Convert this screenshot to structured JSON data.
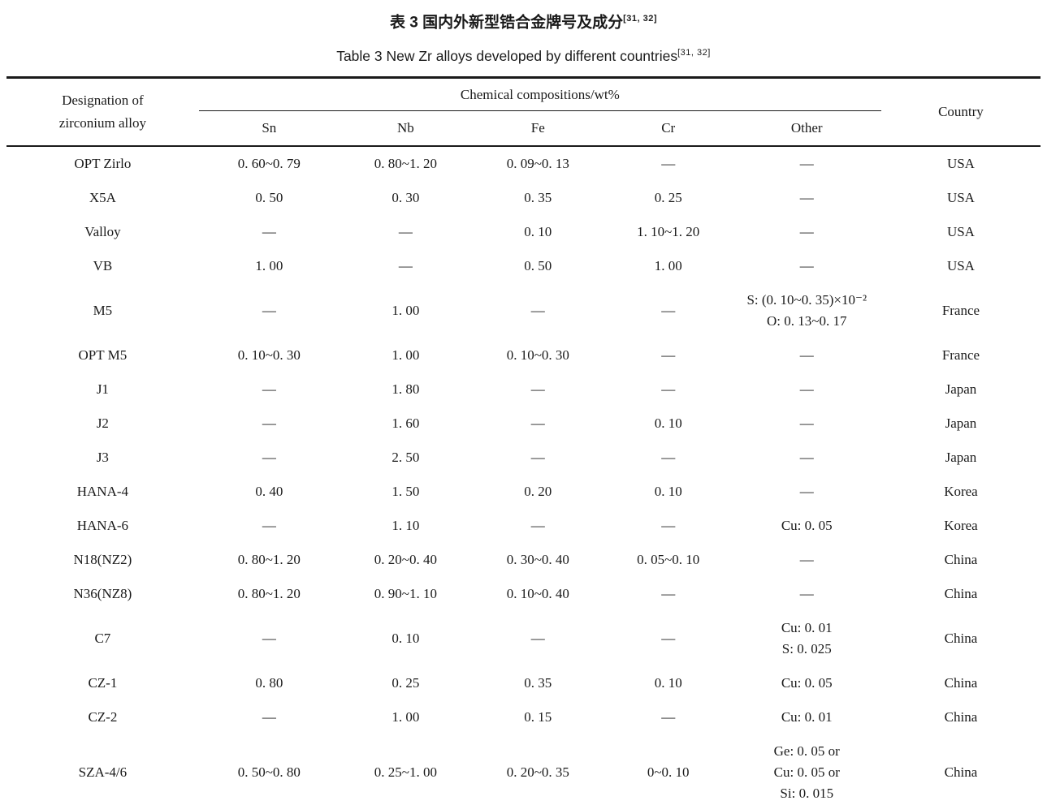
{
  "titles": {
    "zh": "表 3  国内外新型锆合金牌号及成分",
    "zh_ref": "[31, 32]",
    "en": "Table 3  New Zr alloys developed by different countries",
    "en_ref": "[31, 32]"
  },
  "table": {
    "header": {
      "designation_line1": "Designation of",
      "designation_line2": "zirconium alloy",
      "compositions_group": "Chemical compositions/wt%",
      "sub_columns": [
        "Sn",
        "Nb",
        "Fe",
        "Cr",
        "Other"
      ],
      "country": "Country"
    },
    "column_keys": [
      "designation",
      "sn",
      "nb",
      "fe",
      "cr",
      "other",
      "country"
    ],
    "rows": [
      {
        "designation": "OPT Zirlo",
        "sn": "0. 60~0. 79",
        "nb": "0. 80~1. 20",
        "fe": "0. 09~0. 13",
        "cr": "—",
        "other": "—",
        "country": "USA"
      },
      {
        "designation": "X5A",
        "sn": "0. 50",
        "nb": "0. 30",
        "fe": "0. 35",
        "cr": "0. 25",
        "other": "—",
        "country": "USA"
      },
      {
        "designation": "Valloy",
        "sn": "—",
        "nb": "—",
        "fe": "0. 10",
        "cr": "1. 10~1. 20",
        "other": "—",
        "country": "USA"
      },
      {
        "designation": "VB",
        "sn": "1. 00",
        "nb": "—",
        "fe": "0. 50",
        "cr": "1. 00",
        "other": "—",
        "country": "USA"
      },
      {
        "designation": "M5",
        "sn": "—",
        "nb": "1. 00",
        "fe": "—",
        "cr": "—",
        "other": [
          "S: (0. 10~0. 35)×10⁻²",
          "O: 0. 13~0. 17"
        ],
        "country": "France"
      },
      {
        "designation": "OPT M5",
        "sn": "0. 10~0. 30",
        "nb": "1. 00",
        "fe": "0. 10~0. 30",
        "cr": "—",
        "other": "—",
        "country": "France"
      },
      {
        "designation": "J1",
        "sn": "—",
        "nb": "1. 80",
        "fe": "—",
        "cr": "—",
        "other": "—",
        "country": "Japan"
      },
      {
        "designation": "J2",
        "sn": "—",
        "nb": "1. 60",
        "fe": "—",
        "cr": "0. 10",
        "other": "—",
        "country": "Japan"
      },
      {
        "designation": "J3",
        "sn": "—",
        "nb": "2. 50",
        "fe": "—",
        "cr": "—",
        "other": "—",
        "country": "Japan"
      },
      {
        "designation": "HANA-4",
        "sn": "0. 40",
        "nb": "1. 50",
        "fe": "0. 20",
        "cr": "0. 10",
        "other": "—",
        "country": "Korea"
      },
      {
        "designation": "HANA-6",
        "sn": "—",
        "nb": "1. 10",
        "fe": "—",
        "cr": "—",
        "other": "Cu: 0. 05",
        "country": "Korea"
      },
      {
        "designation": "N18(NZ2)",
        "sn": "0. 80~1. 20",
        "nb": "0. 20~0. 40",
        "fe": "0. 30~0. 40",
        "cr": "0. 05~0. 10",
        "other": "—",
        "country": "China"
      },
      {
        "designation": "N36(NZ8)",
        "sn": "0. 80~1. 20",
        "nb": "0. 90~1. 10",
        "fe": "0. 10~0. 40",
        "cr": "—",
        "other": "—",
        "country": "China"
      },
      {
        "designation": "C7",
        "sn": "—",
        "nb": "0. 10",
        "fe": "—",
        "cr": "—",
        "other": [
          "Cu: 0. 01",
          "S: 0. 025"
        ],
        "country": "China"
      },
      {
        "designation": "CZ-1",
        "sn": "0. 80",
        "nb": "0. 25",
        "fe": "0. 35",
        "cr": "0. 10",
        "other": "Cu: 0. 05",
        "country": "China"
      },
      {
        "designation": "CZ-2",
        "sn": "—",
        "nb": "1. 00",
        "fe": "0. 15",
        "cr": "—",
        "other": "Cu: 0. 01",
        "country": "China"
      },
      {
        "designation": "SZA-4/6",
        "sn": "0. 50~0. 80",
        "nb": "0. 25~1. 00",
        "fe": "0. 20~0. 35",
        "cr": "0~0. 10",
        "other": [
          "Ge: 0. 05 or",
          "Cu: 0. 05 or",
          "Si: 0. 015"
        ],
        "country": "China"
      }
    ]
  }
}
